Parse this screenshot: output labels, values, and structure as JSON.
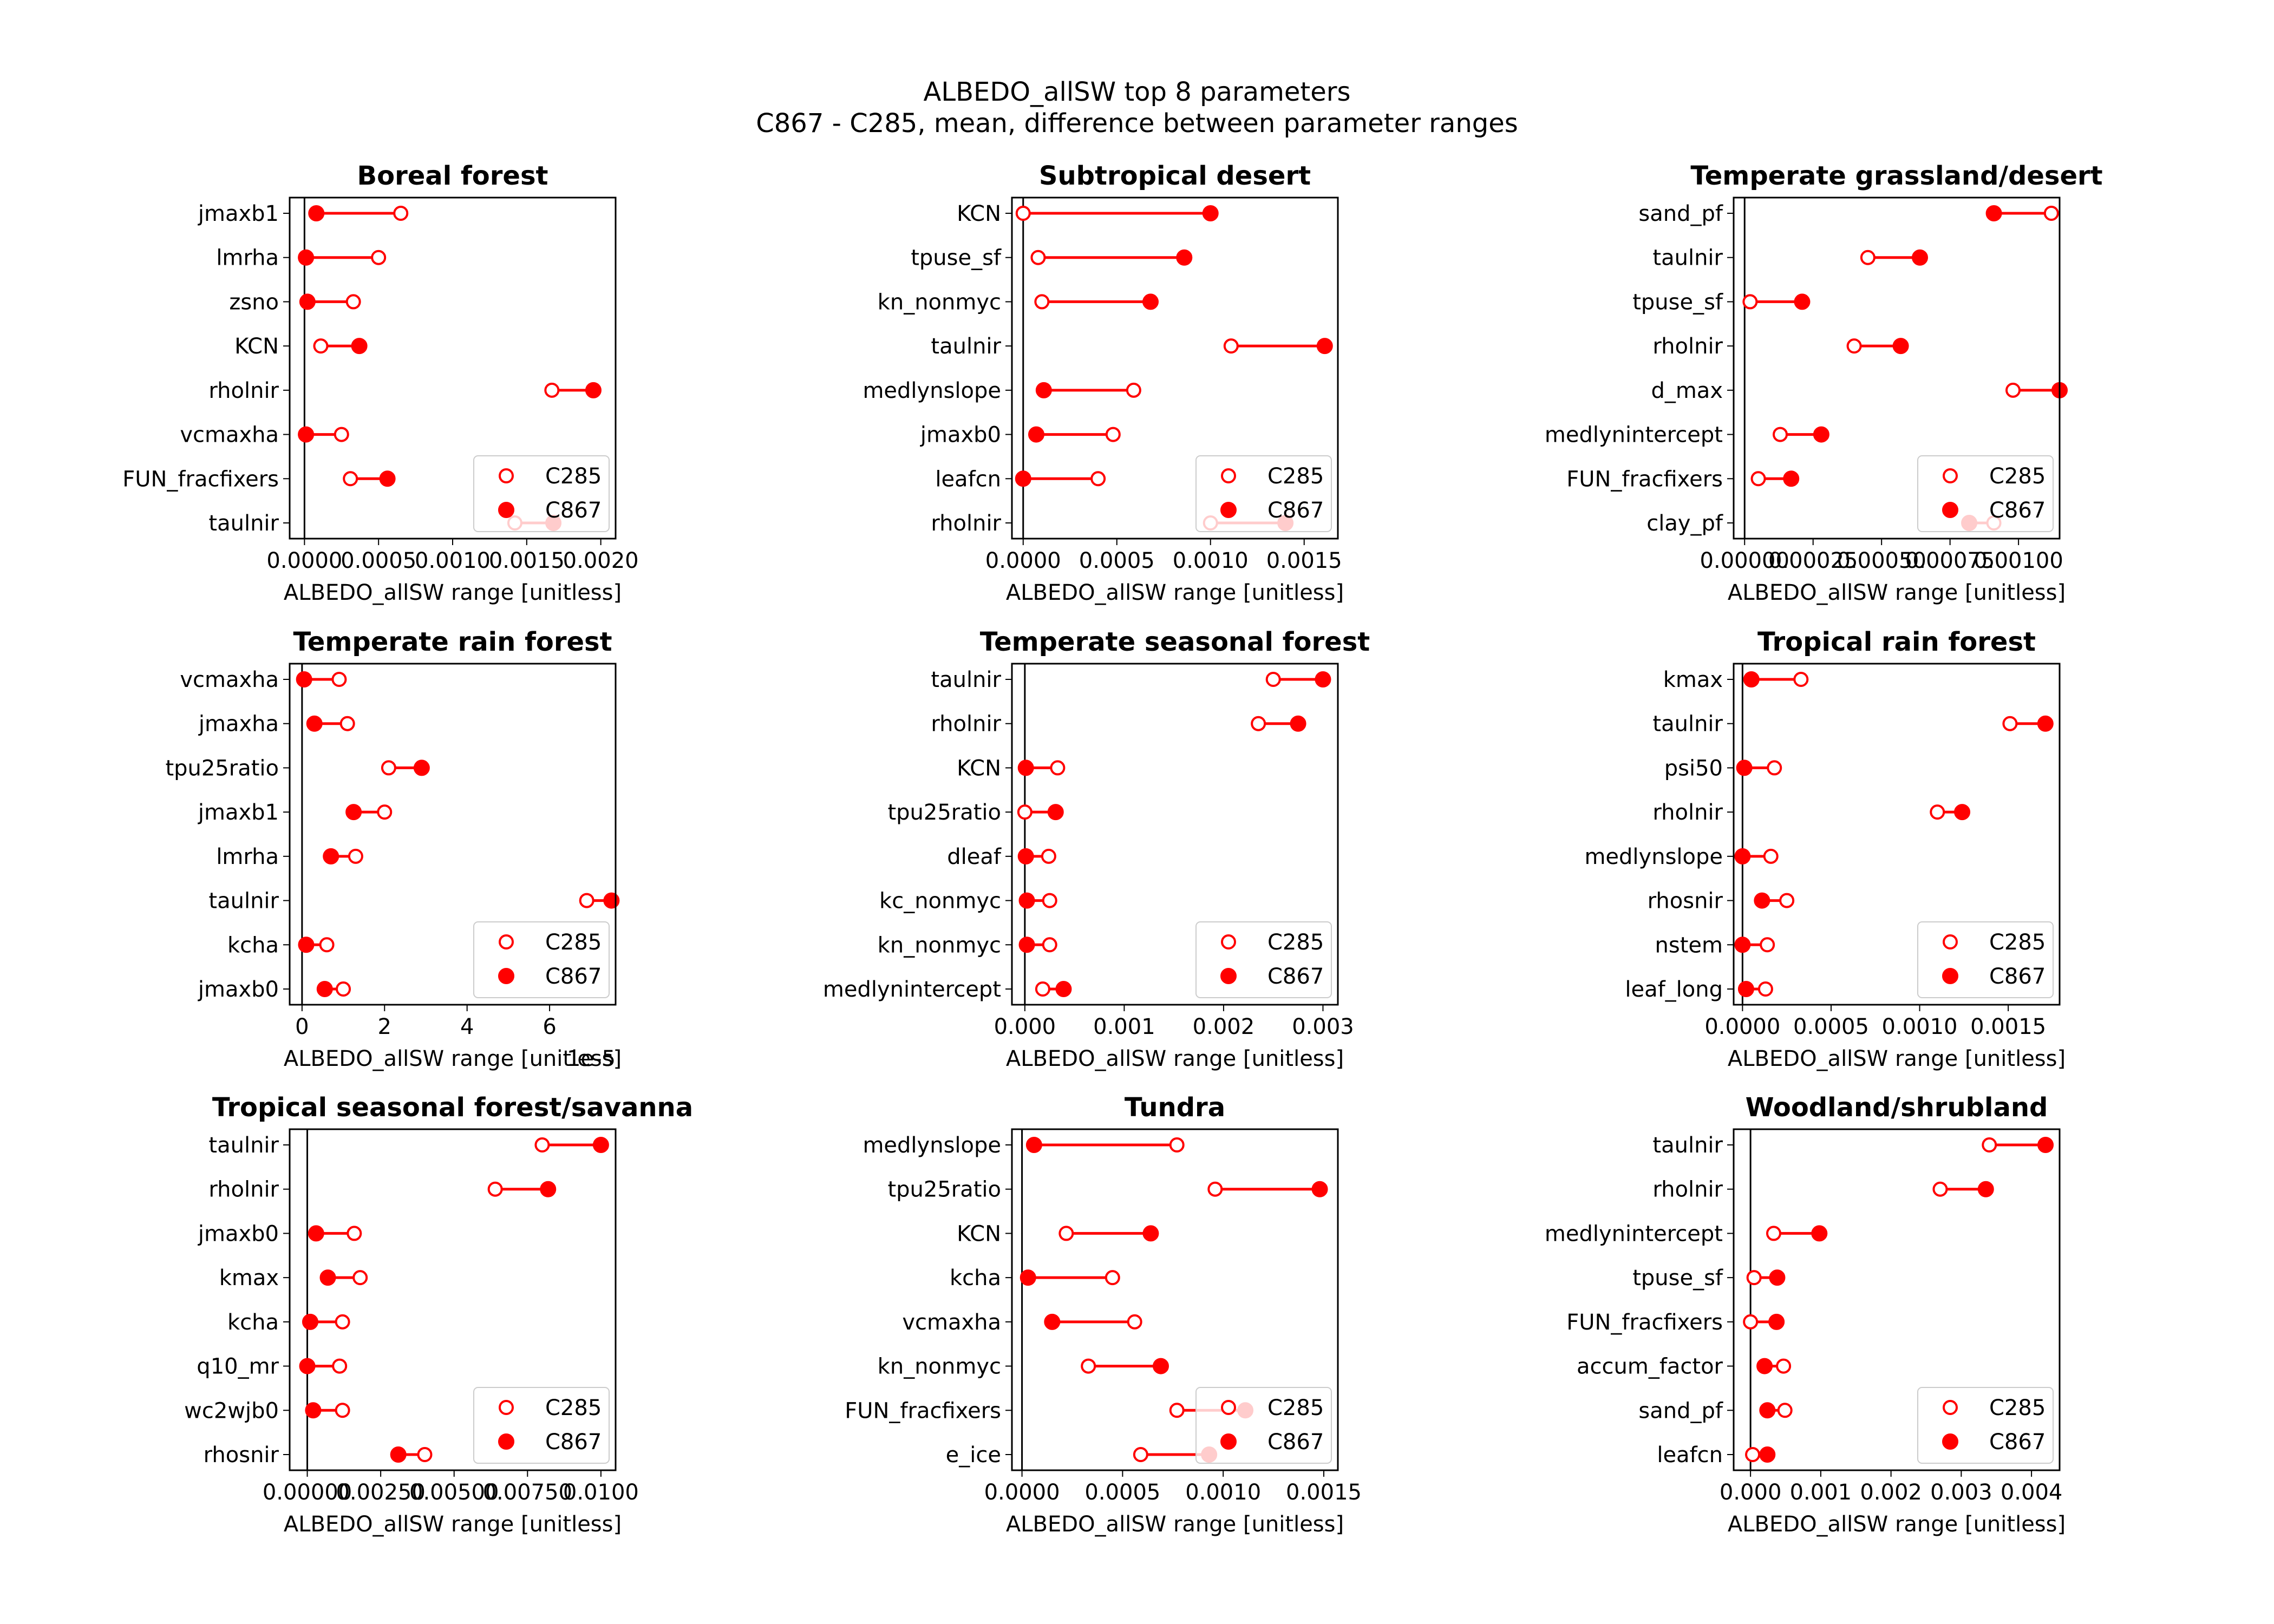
{
  "figure": {
    "title_line1": "ALBEDO_allSW top 8 parameters",
    "title_line2": "C867 - C285, mean, difference between parameter ranges"
  },
  "colors": {
    "marker": "#ff0000",
    "line": "#ff0000",
    "axes": "#000000"
  },
  "chart_data": [
    {
      "type": "dumbbell",
      "title": "Boreal forest",
      "xlabel": "ALBEDO_allSW range [unitless]",
      "xlim": [
        -0.0001,
        0.0021
      ],
      "xticks": [
        0.0,
        0.0005,
        0.001,
        0.0015,
        0.002
      ],
      "xtick_labels": [
        "0.0000",
        "0.0005",
        "0.0010",
        "0.0015",
        "0.0020"
      ],
      "offset_label": "",
      "legend": {
        "entries": [
          "C285",
          "C867"
        ],
        "loc": "lower right"
      },
      "parameters": [
        "jmaxb1",
        "lmrha",
        "zsno",
        "KCN",
        "rholnir",
        "vcmaxha",
        "FUN_fracfixers",
        "taulnir"
      ],
      "series": [
        {
          "name": "C285",
          "marker": "open-circle",
          "values": [
            0.00065,
            0.0005,
            0.00033,
            0.00011,
            0.00167,
            0.00025,
            0.00031,
            0.00142
          ]
        },
        {
          "name": "C867",
          "marker": "filled-circle",
          "values": [
            8e-05,
            1e-05,
            2e-05,
            0.00037,
            0.00195,
            1e-05,
            0.00056,
            0.00168
          ]
        }
      ]
    },
    {
      "type": "dumbbell",
      "title": "Subtropical desert",
      "xlabel": "ALBEDO_allSW range [unitless]",
      "xlim": [
        -6e-05,
        0.00168
      ],
      "xticks": [
        0.0,
        0.0005,
        0.001,
        0.0015
      ],
      "xtick_labels": [
        "0.0000",
        "0.0005",
        "0.0010",
        "0.0015"
      ],
      "offset_label": "",
      "legend": {
        "entries": [
          "C285",
          "C867"
        ],
        "loc": "lower right"
      },
      "parameters": [
        "KCN",
        "tpuse_sf",
        "kn_nonmyc",
        "taulnir",
        "medlynslope",
        "jmaxb0",
        "leafcn",
        "rholnir"
      ],
      "series": [
        {
          "name": "C285",
          "marker": "open-circle",
          "values": [
            0.0,
            8e-05,
            0.0001,
            0.00111,
            0.00059,
            0.00048,
            0.0004,
            0.001
          ]
        },
        {
          "name": "C867",
          "marker": "filled-circle",
          "values": [
            0.001,
            0.00086,
            0.00068,
            0.00161,
            0.00011,
            7e-05,
            0.0,
            0.0014
          ]
        }
      ]
    },
    {
      "type": "dumbbell",
      "title": "Temperate grassland/desert",
      "xlabel": "ALBEDO_allSW range [unitless]",
      "xlim": [
        -4e-05,
        0.00115
      ],
      "xticks": [
        0.0,
        0.00025,
        0.0005,
        0.00075,
        0.001
      ],
      "xtick_labels": [
        "0.00000",
        "0.00025",
        "0.00050",
        "0.00075",
        "0.00100"
      ],
      "offset_label": "",
      "legend": {
        "entries": [
          "C285",
          "C867"
        ],
        "loc": "lower right"
      },
      "parameters": [
        "sand_pf",
        "taulnir",
        "tpuse_sf",
        "rholnir",
        "d_max",
        "medlynintercept",
        "FUN_fracfixers",
        "clay_pf"
      ],
      "series": [
        {
          "name": "C285",
          "marker": "open-circle",
          "values": [
            0.00112,
            0.00045,
            2e-05,
            0.0004,
            0.00098,
            0.00013,
            5e-05,
            0.00091
          ]
        },
        {
          "name": "C867",
          "marker": "filled-circle",
          "values": [
            0.00091,
            0.00064,
            0.00021,
            0.00057,
            0.00115,
            0.00028,
            0.00017,
            0.00082
          ]
        }
      ]
    },
    {
      "type": "dumbbell",
      "title": "Temperate rain forest",
      "xlabel": "ALBEDO_allSW range [unitless]",
      "xlim": [
        -0.3,
        7.6
      ],
      "xticks": [
        0,
        2,
        4,
        6
      ],
      "xtick_labels": [
        "0",
        "2",
        "4",
        "6"
      ],
      "offset_label": "1e-5",
      "legend": {
        "entries": [
          "C285",
          "C867"
        ],
        "loc": "lower right"
      },
      "parameters": [
        "vcmaxha",
        "jmaxha",
        "tpu25ratio",
        "jmaxb1",
        "lmrha",
        "taulnir",
        "kcha",
        "jmaxb0"
      ],
      "series": [
        {
          "name": "C285",
          "marker": "open-circle",
          "values": [
            0.9,
            1.1,
            2.1,
            2.0,
            1.3,
            6.9,
            0.6,
            1.0
          ]
        },
        {
          "name": "C867",
          "marker": "filled-circle",
          "values": [
            0.05,
            0.3,
            2.9,
            1.25,
            0.7,
            7.5,
            0.1,
            0.55
          ]
        }
      ]
    },
    {
      "type": "dumbbell",
      "title": "Temperate seasonal forest",
      "xlabel": "ALBEDO_allSW range [unitless]",
      "xlim": [
        -0.00013,
        0.00315
      ],
      "xticks": [
        0.0,
        0.001,
        0.002,
        0.003
      ],
      "xtick_labels": [
        "0.000",
        "0.001",
        "0.002",
        "0.003"
      ],
      "offset_label": "",
      "legend": {
        "entries": [
          "C285",
          "C867"
        ],
        "loc": "lower right"
      },
      "parameters": [
        "taulnir",
        "rholnir",
        "KCN",
        "tpu25ratio",
        "dleaf",
        "kc_nonmyc",
        "kn_nonmyc",
        "medlynintercept"
      ],
      "series": [
        {
          "name": "C285",
          "marker": "open-circle",
          "values": [
            0.0025,
            0.00235,
            0.00033,
            0.0,
            0.00024,
            0.00025,
            0.00025,
            0.00018
          ]
        },
        {
          "name": "C867",
          "marker": "filled-circle",
          "values": [
            0.003,
            0.00275,
            1e-05,
            0.00031,
            1e-05,
            2e-05,
            2e-05,
            0.00039
          ]
        }
      ]
    },
    {
      "type": "dumbbell",
      "title": "Tropical rain forest",
      "xlabel": "ALBEDO_allSW range [unitless]",
      "xlim": [
        -5e-05,
        0.00179
      ],
      "xticks": [
        0.0,
        0.0005,
        0.001,
        0.0015
      ],
      "xtick_labels": [
        "0.0000",
        "0.0005",
        "0.0010",
        "0.0015"
      ],
      "offset_label": "",
      "legend": {
        "entries": [
          "C285",
          "C867"
        ],
        "loc": "lower right"
      },
      "parameters": [
        "kmax",
        "taulnir",
        "psi50",
        "rholnir",
        "medlynslope",
        "rhosnir",
        "nstem",
        "leaf_long"
      ],
      "series": [
        {
          "name": "C285",
          "marker": "open-circle",
          "values": [
            0.00033,
            0.00151,
            0.00018,
            0.0011,
            0.00016,
            0.00025,
            0.00014,
            0.00013
          ]
        },
        {
          "name": "C867",
          "marker": "filled-circle",
          "values": [
            5e-05,
            0.00171,
            1e-05,
            0.00124,
            0.0,
            0.00011,
            0.0,
            2e-05
          ]
        }
      ]
    },
    {
      "type": "dumbbell",
      "title": "Tropical seasonal forest/savanna",
      "xlabel": "ALBEDO_allSW range [unitless]",
      "xlim": [
        -0.0006,
        0.0105
      ],
      "xticks": [
        0.0,
        0.0025,
        0.005,
        0.0075,
        0.01
      ],
      "xtick_labels": [
        "0.00000",
        "0.00250",
        "0.00500",
        "0.00750",
        "0.0100"
      ],
      "offset_label": "",
      "legend": {
        "entries": [
          "C285",
          "C867"
        ],
        "loc": "lower right"
      },
      "parameters": [
        "taulnir",
        "rholnir",
        "jmaxb0",
        "kmax",
        "kcha",
        "q10_mr",
        "wc2wjb0",
        "rhosnir"
      ],
      "series": [
        {
          "name": "C285",
          "marker": "open-circle",
          "values": [
            0.008,
            0.0064,
            0.0016,
            0.0018,
            0.0012,
            0.0011,
            0.0012,
            0.004
          ]
        },
        {
          "name": "C867",
          "marker": "filled-circle",
          "values": [
            0.01,
            0.0082,
            0.0003,
            0.0007,
            0.0001,
            0.0,
            0.0002,
            0.0031
          ]
        }
      ]
    },
    {
      "type": "dumbbell",
      "title": "Tundra",
      "xlabel": "ALBEDO_allSW range [unitless]",
      "xlim": [
        -5e-05,
        0.00157
      ],
      "xticks": [
        0.0,
        0.0005,
        0.001,
        0.0015
      ],
      "xtick_labels": [
        "0.0000",
        "0.0005",
        "0.0010",
        "0.0015"
      ],
      "offset_label": "",
      "legend": {
        "entries": [
          "C285",
          "C867"
        ],
        "loc": "lower right"
      },
      "parameters": [
        "medlynslope",
        "tpu25ratio",
        "KCN",
        "kcha",
        "vcmaxha",
        "kn_nonmyc",
        "FUN_fracfixers",
        "e_ice"
      ],
      "series": [
        {
          "name": "C285",
          "marker": "open-circle",
          "values": [
            0.00077,
            0.00096,
            0.00022,
            0.00045,
            0.00056,
            0.00033,
            0.00077,
            0.00059
          ]
        },
        {
          "name": "C867",
          "marker": "filled-circle",
          "values": [
            6e-05,
            0.00148,
            0.00064,
            3e-05,
            0.00015,
            0.00069,
            0.00111,
            0.00093
          ]
        }
      ]
    },
    {
      "type": "dumbbell",
      "title": "Woodland/shrubland",
      "xlabel": "ALBEDO_allSW range [unitless]",
      "xlim": [
        -0.00024,
        0.0044
      ],
      "xticks": [
        0.0,
        0.001,
        0.002,
        0.003,
        0.004
      ],
      "xtick_labels": [
        "0.000",
        "0.001",
        "0.002",
        "0.003",
        "0.004"
      ],
      "offset_label": "",
      "legend": {
        "entries": [
          "C285",
          "C867"
        ],
        "loc": "lower right"
      },
      "parameters": [
        "taulnir",
        "rholnir",
        "medlynintercept",
        "tpuse_sf",
        "FUN_fracfixers",
        "accum_factor",
        "sand_pf",
        "leafcn"
      ],
      "series": [
        {
          "name": "C285",
          "marker": "open-circle",
          "values": [
            0.0034,
            0.0027,
            0.00033,
            5e-05,
            0.0,
            0.00047,
            0.00049,
            3e-05
          ]
        },
        {
          "name": "C867",
          "marker": "filled-circle",
          "values": [
            0.0042,
            0.00335,
            0.00098,
            0.00038,
            0.00037,
            0.0002,
            0.00024,
            0.00024
          ]
        }
      ]
    }
  ]
}
